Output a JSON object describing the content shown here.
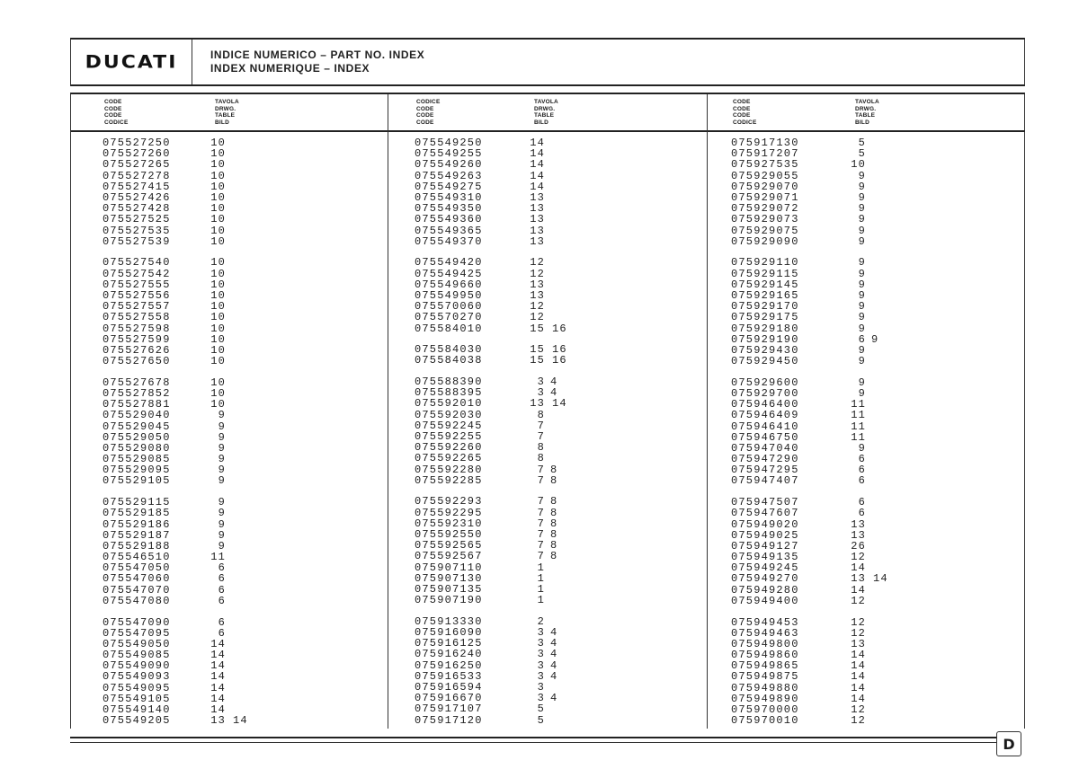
{
  "header": {
    "logo": "DUCATI",
    "title_line1": "INDICE NUMERICO – PART NO. INDEX",
    "title_line2": "INDEX NUMERIQUE – INDEX"
  },
  "columns": [
    {
      "code_header": [
        "CODE",
        "CODE",
        "CODE",
        "CODICE"
      ],
      "table_header": [
        "TAVOLA",
        "DRWG.",
        "TABLE",
        "BILD"
      ],
      "groups": [
        {
          "rows": [
            [
              "075527250",
              [
                10
              ]
            ],
            [
              "075527260",
              [
                10
              ]
            ],
            [
              "075527265",
              [
                10
              ]
            ],
            [
              "075527278",
              [
                10
              ]
            ],
            [
              "075527415",
              [
                10
              ]
            ],
            [
              "075527426",
              [
                10
              ]
            ],
            [
              "075527428",
              [
                10
              ]
            ],
            [
              "075527525",
              [
                10
              ]
            ],
            [
              "075527535",
              [
                10
              ]
            ],
            [
              "075527539",
              [
                10
              ]
            ]
          ]
        },
        {
          "rows": [
            [
              "075527540",
              [
                10
              ]
            ],
            [
              "075527542",
              [
                10
              ]
            ],
            [
              "075527555",
              [
                10
              ]
            ],
            [
              "075527556",
              [
                10
              ]
            ],
            [
              "075527557",
              [
                10
              ]
            ],
            [
              "075527558",
              [
                10
              ]
            ],
            [
              "075527598",
              [
                10
              ]
            ],
            [
              "075527599",
              [
                10
              ]
            ],
            [
              "075527626",
              [
                10
              ]
            ],
            [
              "075527650",
              [
                10
              ]
            ]
          ]
        },
        {
          "rows": [
            [
              "075527678",
              [
                10
              ]
            ],
            [
              "075527852",
              [
                10
              ]
            ],
            [
              "075527881",
              [
                10
              ]
            ],
            [
              "075529040",
              [
                9
              ]
            ],
            [
              "075529045",
              [
                9
              ]
            ],
            [
              "075529050",
              [
                9
              ]
            ],
            [
              "075529080",
              [
                9
              ]
            ],
            [
              "075529085",
              [
                9
              ]
            ],
            [
              "075529095",
              [
                9
              ]
            ],
            [
              "075529105",
              [
                9
              ]
            ]
          ]
        },
        {
          "rows": [
            [
              "075529115",
              [
                9
              ]
            ],
            [
              "075529185",
              [
                9
              ]
            ],
            [
              "075529186",
              [
                9
              ]
            ],
            [
              "075529187",
              [
                9
              ]
            ],
            [
              "075529188",
              [
                9
              ]
            ],
            [
              "075546510",
              [
                11
              ]
            ],
            [
              "075547050",
              [
                6
              ]
            ],
            [
              "075547060",
              [
                6
              ]
            ],
            [
              "075547070",
              [
                6
              ]
            ],
            [
              "075547080",
              [
                6
              ]
            ]
          ]
        },
        {
          "rows": [
            [
              "075547090",
              [
                6
              ]
            ],
            [
              "075547095",
              [
                6
              ]
            ],
            [
              "075549050",
              [
                14
              ]
            ],
            [
              "075549085",
              [
                14
              ]
            ],
            [
              "075549090",
              [
                14
              ]
            ],
            [
              "075549093",
              [
                14
              ]
            ],
            [
              "075549095",
              [
                14
              ]
            ],
            [
              "075549105",
              [
                14
              ]
            ],
            [
              "075549140",
              [
                14
              ]
            ],
            [
              "075549205",
              [
                13,
                14
              ]
            ]
          ]
        }
      ]
    },
    {
      "code_header": [
        "CODICE",
        "CODE",
        "CODE",
        "CODE"
      ],
      "table_header": [
        "TAVOLA",
        "DRWG.",
        "TABLE",
        "BILD"
      ],
      "groups": [
        {
          "rows": [
            [
              "075549250",
              [
                14
              ]
            ],
            [
              "075549255",
              [
                14
              ]
            ],
            [
              "075549260",
              [
                14
              ]
            ],
            [
              "075549263",
              [
                14
              ]
            ],
            [
              "075549275",
              [
                14
              ]
            ],
            [
              "075549310",
              [
                13
              ]
            ],
            [
              "075549350",
              [
                13
              ]
            ],
            [
              "075549360",
              [
                13
              ]
            ],
            [
              "075549365",
              [
                13
              ]
            ],
            [
              "075549370",
              [
                13
              ]
            ]
          ]
        },
        {
          "rows": [
            [
              "075549420",
              [
                12
              ]
            ],
            [
              "075549425",
              [
                12
              ]
            ],
            [
              "075549660",
              [
                13
              ]
            ],
            [
              "075549950",
              [
                13
              ]
            ],
            [
              "075570060",
              [
                12
              ]
            ],
            [
              "075570270",
              [
                12
              ]
            ],
            [
              "075584010",
              [
                15,
                16
              ]
            ]
          ]
        },
        {
          "rows": [
            [
              "075584030",
              [
                15,
                16
              ]
            ],
            [
              "075584038",
              [
                15,
                16
              ]
            ]
          ]
        },
        {
          "rows": [
            [
              "075588390",
              [
                3,
                4
              ]
            ],
            [
              "075588395",
              [
                3,
                4
              ]
            ],
            [
              "075592010",
              [
                13,
                14
              ]
            ],
            [
              "075592030",
              [
                8
              ]
            ],
            [
              "075592245",
              [
                7
              ]
            ],
            [
              "075592255",
              [
                7
              ]
            ],
            [
              "075592260",
              [
                8
              ]
            ],
            [
              "075592265",
              [
                8
              ]
            ],
            [
              "075592280",
              [
                7,
                8
              ]
            ],
            [
              "075592285",
              [
                7,
                8
              ]
            ]
          ]
        },
        {
          "rows": [
            [
              "075592293",
              [
                7,
                8
              ]
            ],
            [
              "075592295",
              [
                7,
                8
              ]
            ],
            [
              "075592310",
              [
                7,
                8
              ]
            ],
            [
              "075592550",
              [
                7,
                8
              ]
            ],
            [
              "075592565",
              [
                7,
                8
              ]
            ],
            [
              "075592567",
              [
                7,
                8
              ]
            ],
            [
              "075907110",
              [
                1
              ]
            ],
            [
              "075907130",
              [
                1
              ]
            ],
            [
              "075907135",
              [
                1
              ]
            ],
            [
              "075907190",
              [
                1
              ]
            ]
          ]
        },
        {
          "rows": [
            [
              "075913330",
              [
                2
              ]
            ],
            [
              "075916090",
              [
                3,
                4
              ]
            ],
            [
              "075916125",
              [
                3,
                4
              ]
            ],
            [
              "075916240",
              [
                3,
                4
              ]
            ],
            [
              "075916250",
              [
                3,
                4
              ]
            ],
            [
              "075916533",
              [
                3,
                4
              ]
            ],
            [
              "075916594",
              [
                3
              ]
            ],
            [
              "075916670",
              [
                3,
                4
              ]
            ],
            [
              "075917107",
              [
                5
              ]
            ],
            [
              "075917120",
              [
                5
              ]
            ]
          ]
        }
      ]
    },
    {
      "code_header": [
        "CODE",
        "CODE",
        "CODE",
        "CODICE"
      ],
      "table_header": [
        "TAVOLA",
        "DRWG.",
        "TABLE",
        "BILD"
      ],
      "groups": [
        {
          "rows": [
            [
              "075917130",
              [
                5
              ]
            ],
            [
              "075917207",
              [
                5
              ]
            ],
            [
              "075927535",
              [
                10
              ]
            ],
            [
              "075929055",
              [
                9
              ]
            ],
            [
              "075929070",
              [
                9
              ]
            ],
            [
              "075929071",
              [
                9
              ]
            ],
            [
              "075929072",
              [
                9
              ]
            ],
            [
              "075929073",
              [
                9
              ]
            ],
            [
              "075929075",
              [
                9
              ]
            ],
            [
              "075929090",
              [
                9
              ]
            ]
          ]
        },
        {
          "rows": [
            [
              "075929110",
              [
                9
              ]
            ],
            [
              "075929115",
              [
                9
              ]
            ],
            [
              "075929145",
              [
                9
              ]
            ],
            [
              "075929165",
              [
                9
              ]
            ],
            [
              "075929170",
              [
                9
              ]
            ],
            [
              "075929175",
              [
                9
              ]
            ],
            [
              "075929180",
              [
                9
              ]
            ],
            [
              "075929190",
              [
                6,
                9
              ]
            ],
            [
              "075929430",
              [
                9
              ]
            ],
            [
              "075929450",
              [
                9
              ]
            ]
          ]
        },
        {
          "rows": [
            [
              "075929600",
              [
                9
              ]
            ],
            [
              "075929700",
              [
                9
              ]
            ],
            [
              "075946400",
              [
                11
              ]
            ],
            [
              "075946409",
              [
                11
              ]
            ],
            [
              "075946410",
              [
                11
              ]
            ],
            [
              "075946750",
              [
                11
              ]
            ],
            [
              "075947040",
              [
                9
              ]
            ],
            [
              "075947290",
              [
                6
              ]
            ],
            [
              "075947295",
              [
                6
              ]
            ],
            [
              "075947407",
              [
                6
              ]
            ]
          ]
        },
        {
          "rows": [
            [
              "075947507",
              [
                6
              ]
            ],
            [
              "075947607",
              [
                6
              ]
            ],
            [
              "075949020",
              [
                13
              ]
            ],
            [
              "075949025",
              [
                13
              ]
            ],
            [
              "075949127",
              [
                26
              ]
            ],
            [
              "075949135",
              [
                12
              ]
            ],
            [
              "075949245",
              [
                14
              ]
            ],
            [
              "075949270",
              [
                13,
                14
              ]
            ],
            [
              "075949280",
              [
                14
              ]
            ],
            [
              "075949400",
              [
                12
              ]
            ]
          ]
        },
        {
          "rows": [
            [
              "075949453",
              [
                12
              ]
            ],
            [
              "075949463",
              [
                12
              ]
            ],
            [
              "075949800",
              [
                13
              ]
            ],
            [
              "075949860",
              [
                14
              ]
            ],
            [
              "075949865",
              [
                14
              ]
            ],
            [
              "075949875",
              [
                14
              ]
            ],
            [
              "075949880",
              [
                14
              ]
            ],
            [
              "075949890",
              [
                14
              ]
            ],
            [
              "075970000",
              [
                12
              ]
            ],
            [
              "075970010",
              [
                12
              ]
            ]
          ]
        }
      ]
    }
  ],
  "footer": {
    "logo": "D"
  }
}
